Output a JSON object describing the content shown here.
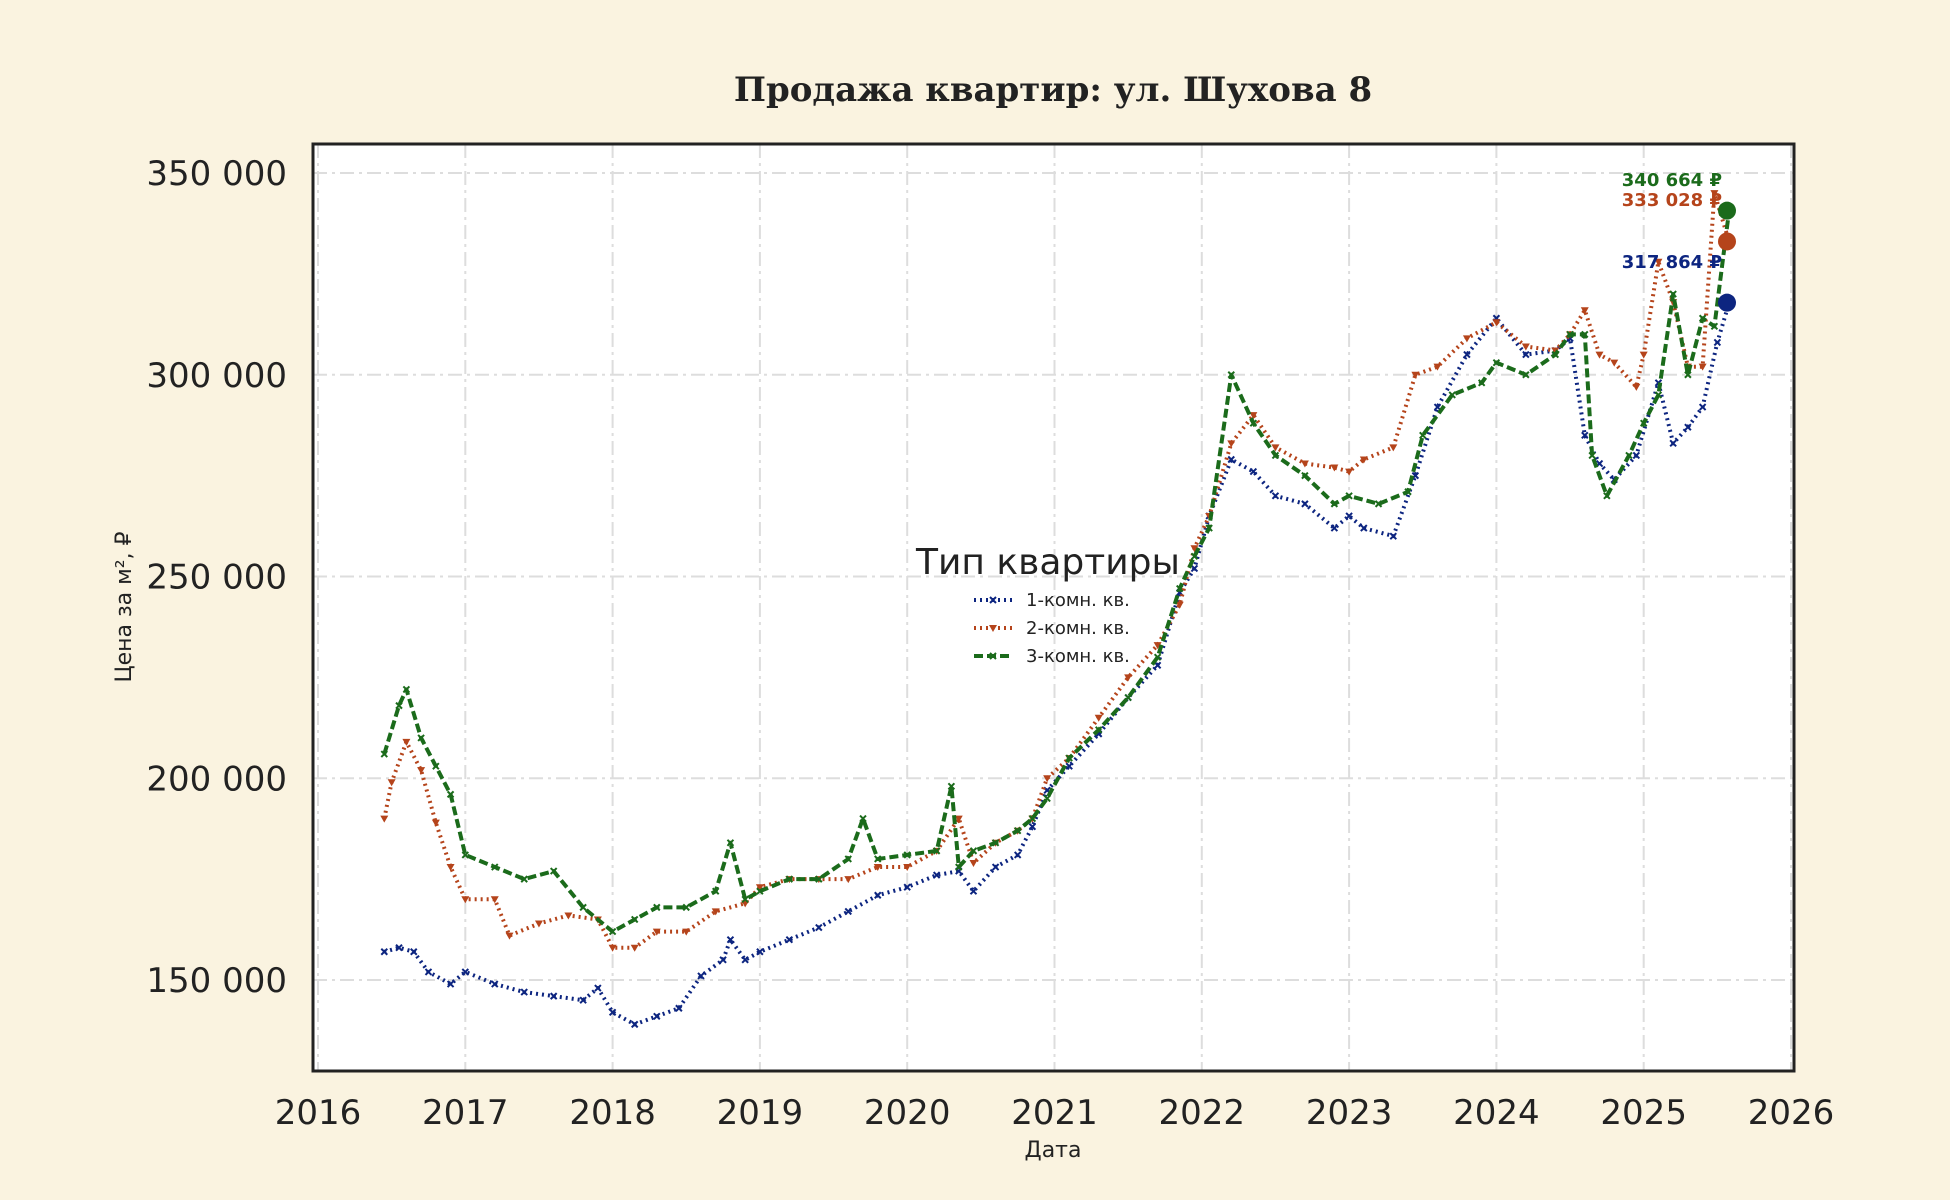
{
  "chart_data": {
    "type": "line",
    "title": "Продажа квартир: ул. Шухова 8",
    "xlabel": "Дата",
    "ylabel": "Цена за м², ₽",
    "x_ticks": [
      "2016",
      "2017",
      "2018",
      "2019",
      "2020",
      "2021",
      "2022",
      "2023",
      "2024",
      "2025",
      "2026"
    ],
    "y_ticks": [
      "150 000",
      "200 000",
      "250 000",
      "300 000",
      "350 000"
    ],
    "xlim": [
      2016.0,
      2026.0
    ],
    "ylim": [
      127000,
      357000
    ],
    "grid": true,
    "legend": {
      "title": "Тип квартиры",
      "placement": "center",
      "entries": [
        "1-комн. кв.",
        "2-комн. кв.",
        "3-комн. кв."
      ]
    },
    "series": [
      {
        "name": "1-комн. кв.",
        "color": "#0d2580",
        "style": "dotted",
        "marker": "x",
        "end_label": "317 864 ₽",
        "end_value": 317864,
        "x": [
          2016.45,
          2016.55,
          2016.65,
          2016.75,
          2016.9,
          2017.0,
          2017.2,
          2017.4,
          2017.6,
          2017.8,
          2017.9,
          2018.0,
          2018.15,
          2018.3,
          2018.45,
          2018.6,
          2018.75,
          2018.8,
          2018.9,
          2019.0,
          2019.2,
          2019.4,
          2019.6,
          2019.8,
          2020.0,
          2020.2,
          2020.35,
          2020.45,
          2020.6,
          2020.75,
          2020.85,
          2020.95,
          2021.1,
          2021.3,
          2021.5,
          2021.7,
          2021.85,
          2021.95,
          2022.05,
          2022.2,
          2022.35,
          2022.5,
          2022.7,
          2022.9,
          2023.0,
          2023.1,
          2023.3,
          2023.45,
          2023.6,
          2023.8,
          2024.0,
          2024.2,
          2024.4,
          2024.5,
          2024.6,
          2024.7,
          2024.8,
          2024.95,
          2025.1,
          2025.2,
          2025.3,
          2025.4,
          2025.5,
          2025.58
        ],
        "y": [
          157000,
          158000,
          157000,
          152000,
          149000,
          152000,
          149000,
          147000,
          146000,
          145000,
          148000,
          142000,
          139000,
          141000,
          143000,
          151000,
          155000,
          160000,
          155000,
          157000,
          160000,
          163000,
          167000,
          171000,
          173000,
          176000,
          177000,
          172000,
          178000,
          181000,
          188000,
          197000,
          203000,
          211000,
          220000,
          228000,
          246000,
          252000,
          265000,
          279000,
          276000,
          270000,
          268000,
          262000,
          265000,
          262000,
          260000,
          275000,
          292000,
          305000,
          314000,
          305000,
          306000,
          309000,
          285000,
          278000,
          274000,
          280000,
          298000,
          283000,
          287000,
          292000,
          308000,
          317864
        ]
      },
      {
        "name": "2-комн. кв.",
        "color": "#b5441b",
        "style": "dotted",
        "marker": "triangle-down",
        "end_label": "333 028 ₽",
        "end_value": 333028,
        "x": [
          2016.45,
          2016.5,
          2016.6,
          2016.7,
          2016.8,
          2016.9,
          2017.0,
          2017.2,
          2017.3,
          2017.5,
          2017.7,
          2017.9,
          2018.0,
          2018.15,
          2018.3,
          2018.5,
          2018.7,
          2018.9,
          2019.0,
          2019.2,
          2019.4,
          2019.6,
          2019.8,
          2020.0,
          2020.2,
          2020.35,
          2020.45,
          2020.6,
          2020.75,
          2020.85,
          2020.95,
          2021.1,
          2021.3,
          2021.5,
          2021.7,
          2021.85,
          2021.95,
          2022.05,
          2022.2,
          2022.35,
          2022.5,
          2022.7,
          2022.9,
          2023.0,
          2023.1,
          2023.3,
          2023.45,
          2023.6,
          2023.8,
          2024.0,
          2024.2,
          2024.4,
          2024.5,
          2024.6,
          2024.7,
          2024.8,
          2024.95,
          2025.0,
          2025.1,
          2025.2,
          2025.3,
          2025.4,
          2025.48,
          2025.58
        ],
        "y": [
          190000,
          199000,
          209000,
          202000,
          189000,
          178000,
          170000,
          170000,
          161000,
          164000,
          166000,
          165000,
          158000,
          158000,
          162000,
          162000,
          167000,
          169000,
          173000,
          175000,
          175000,
          175000,
          178000,
          178000,
          182000,
          190000,
          179000,
          184000,
          187000,
          190000,
          200000,
          205000,
          215000,
          225000,
          233000,
          243000,
          257000,
          265000,
          283000,
          290000,
          282000,
          278000,
          277000,
          276000,
          279000,
          282000,
          300000,
          302000,
          309000,
          313000,
          307000,
          306000,
          310000,
          316000,
          305000,
          303000,
          297000,
          305000,
          328000,
          318000,
          302000,
          302000,
          345000,
          333028
        ]
      },
      {
        "name": "3-комн. кв.",
        "color": "#1b6b1b",
        "style": "dashed",
        "marker": "x",
        "end_label": "340 664 ₽",
        "end_value": 340664,
        "x": [
          2016.45,
          2016.55,
          2016.6,
          2016.7,
          2016.8,
          2016.9,
          2017.0,
          2017.2,
          2017.4,
          2017.6,
          2017.8,
          2018.0,
          2018.15,
          2018.3,
          2018.5,
          2018.7,
          2018.8,
          2018.9,
          2019.0,
          2019.2,
          2019.4,
          2019.6,
          2019.7,
          2019.8,
          2020.0,
          2020.2,
          2020.3,
          2020.35,
          2020.45,
          2020.6,
          2020.75,
          2020.85,
          2020.95,
          2021.1,
          2021.3,
          2021.5,
          2021.7,
          2021.85,
          2021.95,
          2022.05,
          2022.2,
          2022.35,
          2022.5,
          2022.7,
          2022.9,
          2023.0,
          2023.2,
          2023.4,
          2023.5,
          2023.7,
          2023.9,
          2024.0,
          2024.2,
          2024.4,
          2024.5,
          2024.6,
          2024.65,
          2024.75,
          2024.9,
          2025.0,
          2025.1,
          2025.2,
          2025.3,
          2025.4,
          2025.48,
          2025.58
        ],
        "y": [
          206000,
          218000,
          222000,
          210000,
          203000,
          196000,
          181000,
          178000,
          175000,
          177000,
          168000,
          162000,
          165000,
          168000,
          168000,
          172000,
          184000,
          170000,
          172000,
          175000,
          175000,
          180000,
          190000,
          180000,
          181000,
          182000,
          198000,
          178000,
          182000,
          184000,
          187000,
          190000,
          195000,
          205000,
          212000,
          220000,
          230000,
          247000,
          255000,
          262000,
          300000,
          288000,
          280000,
          275000,
          268000,
          270000,
          268000,
          271000,
          285000,
          295000,
          298000,
          303000,
          300000,
          305000,
          310000,
          310000,
          280000,
          270000,
          280000,
          288000,
          295000,
          320000,
          300000,
          314000,
          312000,
          340664
        ]
      }
    ]
  }
}
